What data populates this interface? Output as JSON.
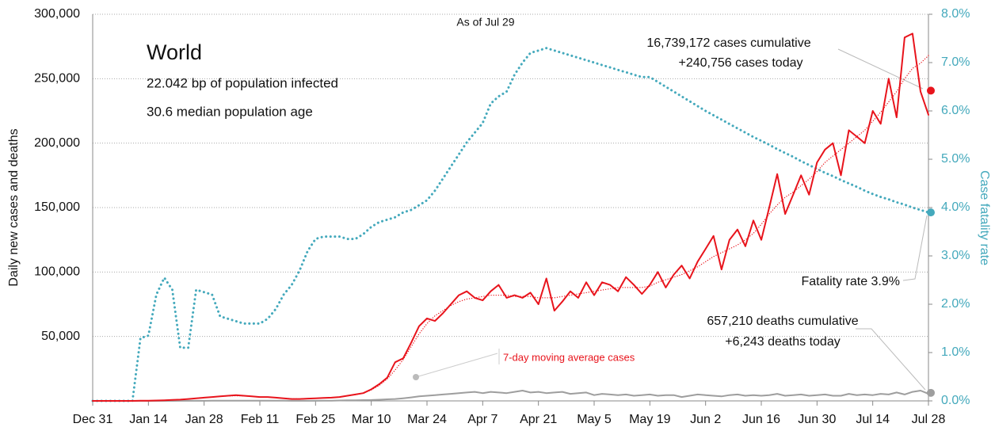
{
  "chart_data": {
    "type": "line",
    "title": "World",
    "subtitle": [
      "22.042 bp of population infected",
      "30.6 median population age"
    ],
    "as_of": "As of Jul 29",
    "ylabel": "Daily new cases and deaths",
    "y2label": "Case fatality rate",
    "annotations": {
      "cases": [
        "16,739,172 cases cumulative",
        "+240,756 cases today"
      ],
      "fatality": "Fatality rate 3.9%",
      "deaths": [
        "657,210 deaths cumulative",
        "+6,243 deaths today"
      ]
    },
    "latest": {
      "cases": 240756,
      "cfr": 3.9,
      "deaths": 6243
    },
    "categories": [
      "Dec 31",
      null,
      null,
      null,
      null,
      null,
      null,
      "Jan 14",
      null,
      null,
      null,
      null,
      null,
      null,
      "Jan 28",
      null,
      null,
      null,
      null,
      null,
      null,
      "Feb 11",
      null,
      null,
      null,
      null,
      null,
      null,
      "Feb 25",
      null,
      null,
      null,
      null,
      null,
      null,
      "Mar 10",
      null,
      null,
      null,
      null,
      null,
      null,
      "Mar 24",
      null,
      null,
      null,
      null,
      null,
      null,
      "Apr 7",
      null,
      null,
      null,
      null,
      null,
      null,
      "Apr 21",
      null,
      null,
      null,
      null,
      null,
      null,
      "May 5",
      null,
      null,
      null,
      null,
      null,
      null,
      "May 19",
      null,
      null,
      null,
      null,
      null,
      null,
      "Jun 2",
      null,
      null,
      null,
      null,
      null,
      null,
      "Jun 16",
      null,
      null,
      null,
      null,
      null,
      null,
      "Jun 30",
      null,
      null,
      null,
      null,
      null,
      null,
      "Jul 14",
      null,
      null,
      null,
      null,
      null,
      null,
      "Jul 28"
    ],
    "ylim": [
      0,
      300000
    ],
    "yticks": [
      {
        "value": 50000,
        "label": "50,000"
      },
      {
        "value": 100000,
        "label": "100,000"
      },
      {
        "value": 150000,
        "label": "150,000"
      },
      {
        "value": 200000,
        "label": "200,000"
      },
      {
        "value": 250000,
        "label": "250,000"
      },
      {
        "value": 300000,
        "label": "300,000"
      }
    ],
    "y2lim": [
      0,
      8
    ],
    "y2ticks": [
      {
        "value": 0,
        "label": "0.0%"
      },
      {
        "value": 1,
        "label": "1.0%"
      },
      {
        "value": 2,
        "label": "2.0%"
      },
      {
        "value": 3,
        "label": "3.0%"
      },
      {
        "value": 4,
        "label": "4.0%"
      },
      {
        "value": 5,
        "label": "5.0%"
      },
      {
        "value": 6,
        "label": "6.0%"
      },
      {
        "value": 7,
        "label": "7.0%"
      },
      {
        "value": 8,
        "label": "8.0%"
      }
    ],
    "grid": true,
    "series": [
      {
        "color": "#e8141c",
        "style": "solid",
        "values": [
          0,
          0,
          0,
          0,
          0,
          0,
          100,
          200,
          300,
          500,
          800,
          1000,
          1500,
          2000,
          2500,
          3000,
          3500,
          4000,
          4500,
          4000,
          3500,
          3000,
          3000,
          2500,
          2000,
          1500,
          1500,
          1800,
          2000,
          2300,
          2500,
          3000,
          4000,
          5000,
          6000,
          9000,
          13000,
          18000,
          30000,
          33000,
          45000,
          58000,
          64000,
          62000,
          68000,
          75000,
          82000,
          85000,
          80000,
          78000,
          85000,
          90000,
          80000,
          82000,
          80000,
          84000,
          75000,
          95000,
          70000,
          77000,
          85000,
          80000,
          92000,
          82000,
          92000,
          90000,
          85000,
          96000,
          90000,
          83000,
          90000,
          100000,
          88000,
          98000,
          105000,
          95000,
          108000,
          118000,
          128000,
          102000,
          125000,
          133000,
          120000,
          140000,
          125000,
          150000,
          176000,
          145000,
          160000,
          175000,
          160000,
          185000,
          195000,
          200000,
          175000,
          210000,
          205000,
          200000,
          225000,
          215000,
          250000,
          220000,
          282000,
          285000,
          240000,
          222000
        ]
      },
      {
        "name": "7-day moving average cases",
        "color": "#e8141c",
        "style": "dotted",
        "values": [
          0,
          0,
          0,
          0,
          0,
          50,
          100,
          200,
          300,
          500,
          800,
          1000,
          1500,
          2000,
          2500,
          3000,
          3500,
          3800,
          4000,
          3800,
          3500,
          3000,
          2800,
          2500,
          2000,
          1700,
          1600,
          1800,
          2000,
          2300,
          2600,
          3000,
          3800,
          4800,
          6000,
          8500,
          12000,
          17000,
          24000,
          32000,
          42000,
          52000,
          60000,
          66000,
          70000,
          74000,
          77000,
          79000,
          80000,
          81000,
          82000,
          82000,
          82000,
          81000,
          81000,
          81000,
          80000,
          80000,
          80000,
          81000,
          82000,
          83000,
          84000,
          85000,
          86000,
          87000,
          88000,
          88000,
          88000,
          88000,
          89000,
          92000,
          94000,
          96000,
          98000,
          101000,
          104000,
          108000,
          112000,
          115000,
          118000,
          121000,
          125000,
          130000,
          137000,
          145000,
          152000,
          158000,
          162000,
          167000,
          172000,
          178000,
          185000,
          190000,
          195000,
          200000,
          205000,
          210000,
          217000,
          224000,
          232000,
          240000,
          250000,
          258000,
          262000,
          268000
        ]
      },
      {
        "color": "#9e9e9e",
        "style": "solid",
        "values": [
          0,
          0,
          0,
          0,
          0,
          0,
          0,
          0,
          10,
          20,
          30,
          50,
          60,
          80,
          90,
          100,
          100,
          100,
          110,
          100,
          100,
          100,
          100,
          100,
          100,
          80,
          70,
          70,
          80,
          100,
          200,
          300,
          400,
          500,
          600,
          700,
          900,
          1200,
          1500,
          2000,
          2700,
          3500,
          4000,
          4500,
          5000,
          5500,
          6000,
          6500,
          7000,
          6000,
          7000,
          6500,
          6000,
          7000,
          8000,
          6500,
          7000,
          6000,
          6500,
          7000,
          5500,
          6000,
          6500,
          4500,
          5500,
          5000,
          4500,
          5000,
          4000,
          4500,
          5000,
          4000,
          4500,
          4500,
          3000,
          4000,
          5000,
          4500,
          4000,
          3500,
          4500,
          5000,
          4000,
          4500,
          4000,
          4500,
          5500,
          4000,
          4500,
          5000,
          4000,
          4500,
          5000,
          4000,
          4000,
          5500,
          4500,
          5000,
          4500,
          5500,
          5000,
          6500,
          5000,
          7000,
          8000,
          5500
        ]
      },
      {
        "color": "#44a9bc",
        "style": "dotted",
        "axis": "y2",
        "values": [
          0,
          0,
          0,
          0,
          0,
          0,
          1.3,
          1.35,
          2.2,
          2.55,
          2.3,
          1.1,
          1.1,
          2.3,
          2.25,
          2.2,
          1.75,
          1.7,
          1.65,
          1.6,
          1.6,
          1.6,
          1.7,
          1.9,
          2.2,
          2.4,
          2.7,
          3.1,
          3.35,
          3.4,
          3.4,
          3.4,
          3.35,
          3.35,
          3.45,
          3.6,
          3.7,
          3.75,
          3.8,
          3.9,
          3.95,
          4.05,
          4.15,
          4.35,
          4.6,
          4.85,
          5.1,
          5.35,
          5.55,
          5.75,
          6.15,
          6.3,
          6.4,
          6.75,
          7.0,
          7.2,
          7.25,
          7.3,
          7.25,
          7.2,
          7.15,
          7.1,
          7.05,
          7.0,
          6.95,
          6.9,
          6.85,
          6.8,
          6.75,
          6.7,
          6.7,
          6.6,
          6.5,
          6.4,
          6.3,
          6.2,
          6.1,
          6.0,
          5.91,
          5.82,
          5.73,
          5.64,
          5.55,
          5.46,
          5.38,
          5.3,
          5.21,
          5.13,
          5.05,
          4.96,
          4.88,
          4.8,
          4.72,
          4.65,
          4.57,
          4.5,
          4.43,
          4.35,
          4.28,
          4.22,
          4.17,
          4.11,
          4.06,
          4.0,
          3.95,
          3.9
        ]
      }
    ]
  }
}
